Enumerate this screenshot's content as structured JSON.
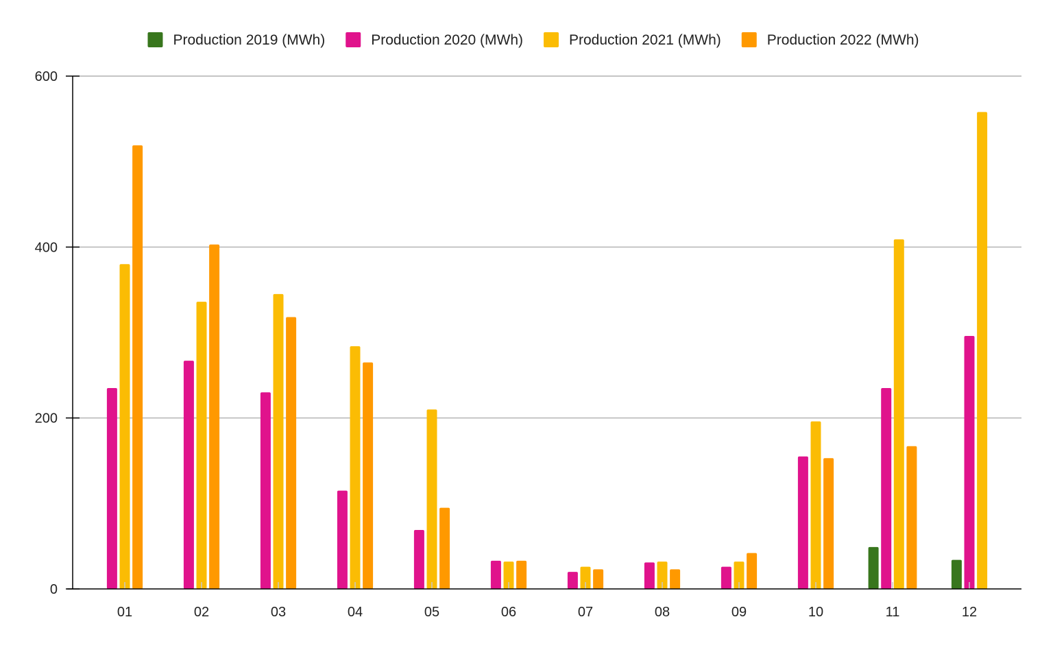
{
  "chart_data": {
    "type": "bar",
    "categories": [
      "01",
      "02",
      "03",
      "04",
      "05",
      "06",
      "07",
      "08",
      "09",
      "10",
      "11",
      "12"
    ],
    "series": [
      {
        "name": "Production 2019 (MWh)",
        "color": "#38761d",
        "values": [
          null,
          null,
          null,
          null,
          null,
          null,
          null,
          null,
          null,
          null,
          49,
          34
        ]
      },
      {
        "name": "Production 2020 (MWh)",
        "color": "#e0138c",
        "values": [
          235,
          267,
          230,
          115,
          69,
          33,
          20,
          31,
          26,
          155,
          235,
          296
        ]
      },
      {
        "name": "Production 2021 (MWh)",
        "color": "#fbbc04",
        "values": [
          380,
          336,
          345,
          284,
          210,
          32,
          26,
          32,
          32,
          196,
          409,
          558
        ]
      },
      {
        "name": "Production 2022 (MWh)",
        "color": "#ff9900",
        "values": [
          519,
          403,
          318,
          265,
          95,
          33,
          23,
          23,
          42,
          153,
          167,
          null
        ]
      }
    ],
    "ylim": [
      0,
      600
    ],
    "yticks": [
      0,
      200,
      400,
      600
    ],
    "grid": true,
    "legend_position": "top"
  }
}
